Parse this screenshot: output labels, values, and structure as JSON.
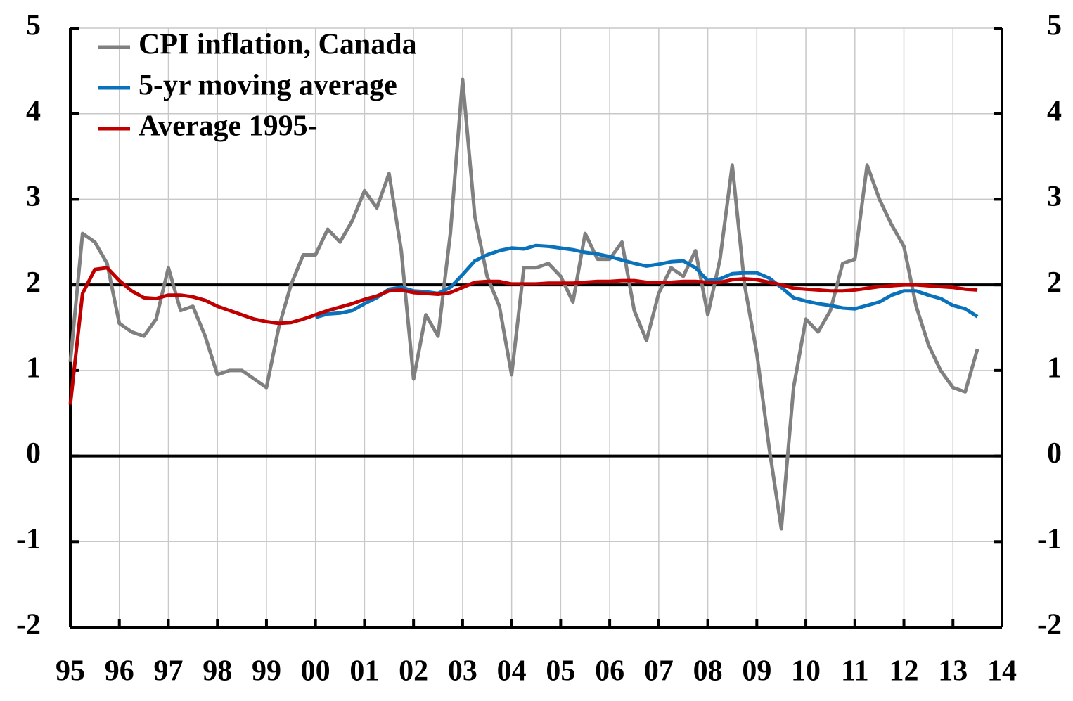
{
  "chart_data": {
    "type": "line",
    "x": [
      1995,
      1995.25,
      1995.5,
      1995.75,
      1996,
      1996.25,
      1996.5,
      1996.75,
      1997,
      1997.25,
      1997.5,
      1997.75,
      1998,
      1998.25,
      1998.5,
      1998.75,
      1999,
      1999.25,
      1999.5,
      1999.75,
      2000,
      2000.25,
      2000.5,
      2000.75,
      2001,
      2001.25,
      2001.5,
      2001.75,
      2002,
      2002.25,
      2002.5,
      2002.75,
      2003,
      2003.25,
      2003.5,
      2003.75,
      2004,
      2004.25,
      2004.5,
      2004.75,
      2005,
      2005.25,
      2005.5,
      2005.75,
      2006,
      2006.25,
      2006.5,
      2006.75,
      2007,
      2007.25,
      2007.5,
      2007.75,
      2008,
      2008.25,
      2008.5,
      2008.75,
      2009,
      2009.25,
      2009.5,
      2009.75,
      2010,
      2010.25,
      2010.5,
      2010.75,
      2011,
      2011.25,
      2011.5,
      2011.75,
      2012,
      2012.25,
      2012.5,
      2012.75,
      2013,
      2013.25,
      2013.5
    ],
    "series": [
      {
        "name": "CPI inflation, Canada",
        "color": "#808080",
        "values": [
          1.1,
          2.6,
          2.5,
          2.25,
          1.55,
          1.45,
          1.4,
          1.6,
          2.2,
          1.7,
          1.75,
          1.4,
          0.95,
          1.0,
          1.0,
          0.9,
          0.8,
          1.5,
          2.0,
          2.35,
          2.35,
          2.65,
          2.5,
          2.75,
          3.1,
          2.9,
          3.3,
          2.4,
          0.9,
          1.65,
          1.4,
          2.6,
          4.4,
          2.8,
          2.1,
          1.75,
          0.95,
          2.2,
          2.2,
          2.25,
          2.1,
          1.8,
          2.6,
          2.3,
          2.3,
          2.5,
          1.7,
          1.35,
          1.9,
          2.2,
          2.1,
          2.4,
          1.65,
          2.3,
          3.4,
          2.0,
          1.2,
          0.1,
          -0.85,
          0.8,
          1.6,
          1.45,
          1.7,
          2.25,
          2.3,
          3.4,
          3.0,
          2.7,
          2.45,
          1.75,
          1.3,
          1.0,
          0.8,
          0.75,
          1.25
        ]
      },
      {
        "name": "5-yr moving average",
        "color": "#0a72ba",
        "values": [
          null,
          null,
          null,
          null,
          null,
          null,
          null,
          null,
          null,
          null,
          null,
          null,
          null,
          null,
          null,
          null,
          null,
          null,
          null,
          null,
          1.62,
          1.66,
          1.67,
          1.7,
          1.78,
          1.85,
          1.95,
          1.97,
          1.93,
          1.92,
          1.9,
          1.97,
          2.12,
          2.28,
          2.35,
          2.4,
          2.43,
          2.42,
          2.46,
          2.45,
          2.43,
          2.41,
          2.38,
          2.36,
          2.33,
          2.29,
          2.25,
          2.22,
          2.24,
          2.27,
          2.28,
          2.2,
          2.05,
          2.07,
          2.13,
          2.14,
          2.14,
          2.08,
          1.97,
          1.85,
          1.81,
          1.78,
          1.76,
          1.73,
          1.72,
          1.76,
          1.8,
          1.88,
          1.93,
          1.93,
          1.88,
          1.84,
          1.76,
          1.72,
          1.63
        ]
      },
      {
        "name": "Average 1995-",
        "color": "#c00000",
        "values": [
          0.6,
          1.9,
          2.18,
          2.2,
          2.05,
          1.93,
          1.85,
          1.84,
          1.88,
          1.88,
          1.86,
          1.82,
          1.75,
          1.7,
          1.65,
          1.6,
          1.57,
          1.55,
          1.56,
          1.6,
          1.65,
          1.7,
          1.74,
          1.78,
          1.83,
          1.87,
          1.93,
          1.94,
          1.91,
          1.9,
          1.89,
          1.91,
          1.97,
          2.03,
          2.04,
          2.04,
          2.01,
          2.01,
          2.01,
          2.02,
          2.02,
          2.02,
          2.03,
          2.04,
          2.04,
          2.05,
          2.05,
          2.03,
          2.03,
          2.03,
          2.04,
          2.04,
          2.03,
          2.03,
          2.06,
          2.07,
          2.06,
          2.03,
          2.0,
          1.96,
          1.95,
          1.94,
          1.93,
          1.93,
          1.94,
          1.96,
          1.98,
          1.99,
          2.0,
          2.0,
          1.99,
          1.98,
          1.97,
          1.95,
          1.94
        ]
      }
    ],
    "reference_line": 2,
    "xlim": [
      1995,
      2014
    ],
    "xticks": [
      {
        "value": 1995,
        "label": "95"
      },
      {
        "value": 1996,
        "label": "96"
      },
      {
        "value": 1997,
        "label": "97"
      },
      {
        "value": 1998,
        "label": "98"
      },
      {
        "value": 1999,
        "label": "99"
      },
      {
        "value": 2000,
        "label": "00"
      },
      {
        "value": 2001,
        "label": "01"
      },
      {
        "value": 2002,
        "label": "02"
      },
      {
        "value": 2003,
        "label": "03"
      },
      {
        "value": 2004,
        "label": "04"
      },
      {
        "value": 2005,
        "label": "05"
      },
      {
        "value": 2006,
        "label": "06"
      },
      {
        "value": 2007,
        "label": "07"
      },
      {
        "value": 2008,
        "label": "08"
      },
      {
        "value": 2009,
        "label": "09"
      },
      {
        "value": 2010,
        "label": "10"
      },
      {
        "value": 2011,
        "label": "11"
      },
      {
        "value": 2012,
        "label": "12"
      },
      {
        "value": 2013,
        "label": "13"
      },
      {
        "value": 2014,
        "label": "14"
      }
    ],
    "ylim": [
      -2,
      5
    ],
    "yticks": [
      -2,
      -1,
      0,
      1,
      2,
      3,
      4,
      5
    ],
    "grid": true,
    "legend": "top-left"
  }
}
